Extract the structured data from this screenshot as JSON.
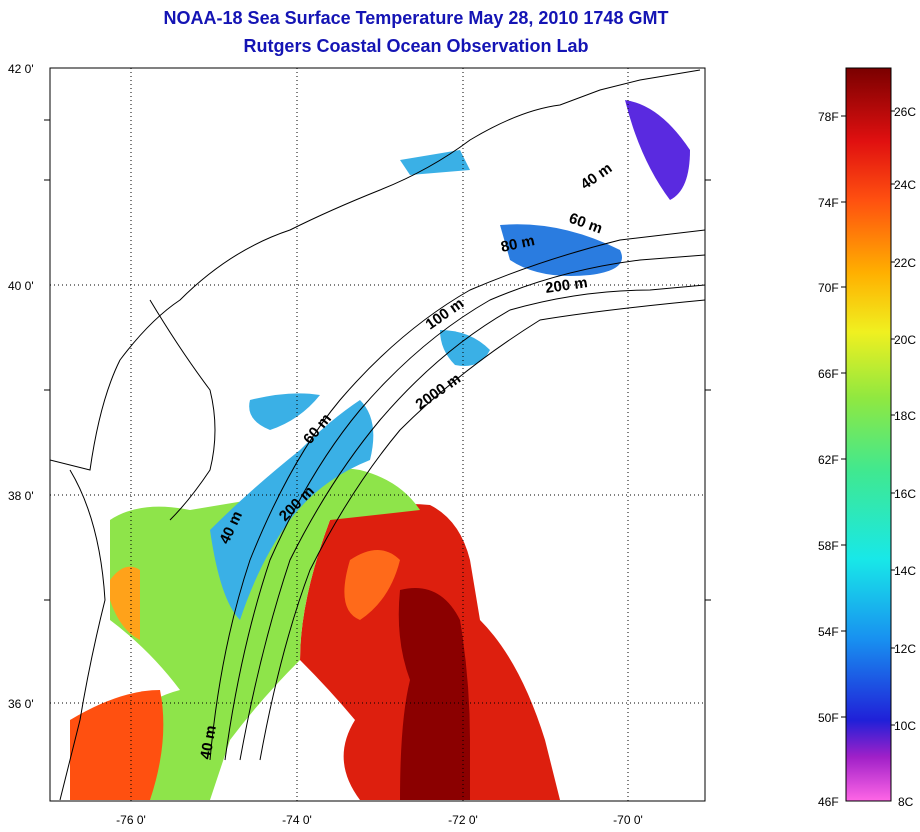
{
  "title": {
    "line1": "NOAA-18 Sea Surface Temperature May 28, 2010 1748 GMT",
    "line2": "Rutgers Coastal Ocean Observation Lab"
  },
  "map": {
    "lat_ticks": [
      {
        "value": 42,
        "label": "42 0'"
      },
      {
        "value": 40,
        "label": "40 0'"
      },
      {
        "value": 38,
        "label": "38 0'"
      },
      {
        "value": 36,
        "label": "36 0'"
      }
    ],
    "lon_ticks": [
      {
        "value": -76,
        "label": "-76 0'"
      },
      {
        "value": -74,
        "label": "-74 0'"
      },
      {
        "value": -72,
        "label": "-72 0'"
      },
      {
        "value": -70,
        "label": "-70 0'"
      }
    ],
    "contour_labels": [
      "40 m",
      "60 m",
      "80 m",
      "200 m",
      "100 m",
      "2000 m",
      "60 m",
      "200 m",
      "40 m",
      "40 m"
    ]
  },
  "colorbar": {
    "fahrenheit": [
      "78F",
      "74F",
      "70F",
      "66F",
      "62F",
      "58F",
      "54F",
      "50F",
      "46F"
    ],
    "celsius": [
      "26C",
      "24C",
      "22C",
      "20C",
      "18C",
      "16C",
      "14C",
      "12C",
      "10C",
      "8C"
    ]
  },
  "colors": {
    "title": "#1414b4",
    "warm_core": "#8b0000",
    "warm": "#dd1f0e",
    "cool": "#3ab0e6",
    "mid": "#8ee44a"
  }
}
